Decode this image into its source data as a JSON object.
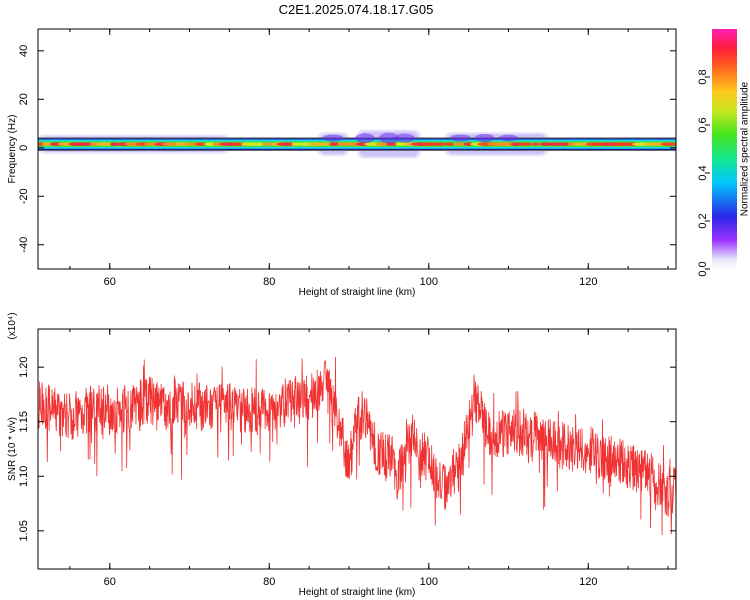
{
  "title": "C2E1.2025.074.18.17.G05",
  "chart_data": [
    {
      "type": "heatmap",
      "xlabel": "Height of straight line (km)",
      "ylabel": "Frequency (Hz)",
      "xlim": [
        51,
        131
      ],
      "ylim": [
        -50,
        49
      ],
      "x_ticks": [
        60,
        80,
        100,
        120
      ],
      "y_ticks": [
        -40,
        -20,
        0,
        20,
        40
      ],
      "colorbar": {
        "label": "Normalized spectral amplitude",
        "range": [
          0,
          1
        ],
        "ticks": [
          0.0,
          0.2,
          0.4,
          0.6,
          0.8
        ]
      },
      "band": {
        "center_frequency_hz": 1.5,
        "segments": [
          {
            "x": [
              51,
              75
            ],
            "halfwidth_hz": 4.0
          },
          {
            "x": [
              86,
              90
            ],
            "halfwidth_hz": 5.0
          },
          {
            "x": [
              91,
              99
            ],
            "halfwidth_hz": 6.0
          },
          {
            "x": [
              102,
              115
            ],
            "halfwidth_hz": 5.0
          }
        ]
      }
    },
    {
      "type": "line",
      "xlabel": "Height of straight line (km)",
      "ylabel": "SNR (10 * v/v)",
      "ylabel_multiplier": "(x10⁴)",
      "xlim": [
        51,
        131
      ],
      "ylim": [
        1.015,
        1.235
      ],
      "x_ticks": [
        60,
        80,
        100,
        120
      ],
      "y_ticks": [
        1.05,
        1.1,
        1.15,
        1.2
      ],
      "series": [
        {
          "color": "#f03232",
          "x": [
            51,
            53,
            55,
            57,
            59,
            61,
            63,
            65,
            67,
            69,
            71,
            73,
            75,
            77,
            79,
            81,
            83,
            85,
            86,
            87,
            88,
            89,
            90,
            91,
            92,
            93,
            94,
            95,
            96,
            97,
            98,
            99,
            100,
            101,
            102,
            103,
            104,
            105,
            106,
            107,
            108,
            110,
            112,
            114,
            116,
            118,
            120,
            122,
            124,
            126,
            128,
            129,
            130,
            131
          ],
          "values": [
            1.165,
            1.16,
            1.155,
            1.16,
            1.165,
            1.16,
            1.165,
            1.17,
            1.16,
            1.165,
            1.165,
            1.16,
            1.165,
            1.16,
            1.16,
            1.165,
            1.17,
            1.17,
            1.18,
            1.185,
            1.17,
            1.14,
            1.11,
            1.15,
            1.16,
            1.13,
            1.12,
            1.125,
            1.1,
            1.12,
            1.14,
            1.11,
            1.12,
            1.1,
            1.09,
            1.1,
            1.11,
            1.15,
            1.17,
            1.145,
            1.14,
            1.14,
            1.14,
            1.135,
            1.13,
            1.125,
            1.125,
            1.115,
            1.115,
            1.105,
            1.1,
            1.09,
            1.085,
            1.1
          ]
        }
      ]
    }
  ],
  "colors": {
    "line": "#f03232",
    "axis": "#000000",
    "colormap": [
      "#e6e6fa",
      "#9a32ff",
      "#2828e6",
      "#00c8ff",
      "#14e68c",
      "#46e61e",
      "#e6e61e",
      "#ffa01e",
      "#ff1e1e",
      "#ff1eb4"
    ]
  }
}
